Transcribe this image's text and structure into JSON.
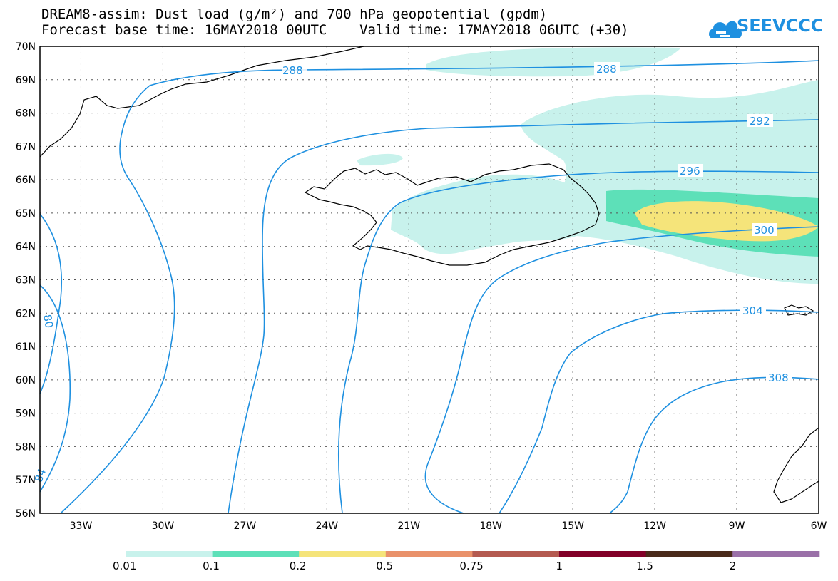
{
  "title": {
    "line1": "DREAM8-assim: Dust load (g/m²) and 700 hPa geopotential (gpdm)",
    "line2": "Forecast base time: 16MAY2018 00UTC    Valid time: 17MAY2018 06UTC (+30)"
  },
  "logo": {
    "text": "SEEVCCC",
    "icon": "cloud-icon"
  },
  "map": {
    "lon_range": [
      -34.5,
      -6
    ],
    "lat_range": [
      56,
      70
    ],
    "lon_ticks": [
      "33W",
      "30W",
      "27W",
      "24W",
      "21W",
      "18W",
      "15W",
      "12W",
      "9W",
      "6W"
    ],
    "lat_ticks": [
      "70N",
      "69N",
      "68N",
      "67N",
      "66N",
      "65N",
      "64N",
      "63N",
      "62N",
      "61N",
      "60N",
      "59N",
      "58N",
      "57N",
      "56N"
    ],
    "contour_labels": [
      "288",
      "288",
      "292",
      "296",
      "300",
      "304",
      "308",
      "80",
      "84"
    ],
    "contour_color": "#1e90e0"
  },
  "colorbar": {
    "colors": [
      "#c8f2ec",
      "#5de0b8",
      "#f5e47a",
      "#e9916a",
      "#b45a50",
      "#820028",
      "#4a2a1a",
      "#9a70a8"
    ],
    "labels": [
      "0.01",
      "0.1",
      "0.2",
      "0.5",
      "0.75",
      "1",
      "1.5",
      "2"
    ]
  }
}
